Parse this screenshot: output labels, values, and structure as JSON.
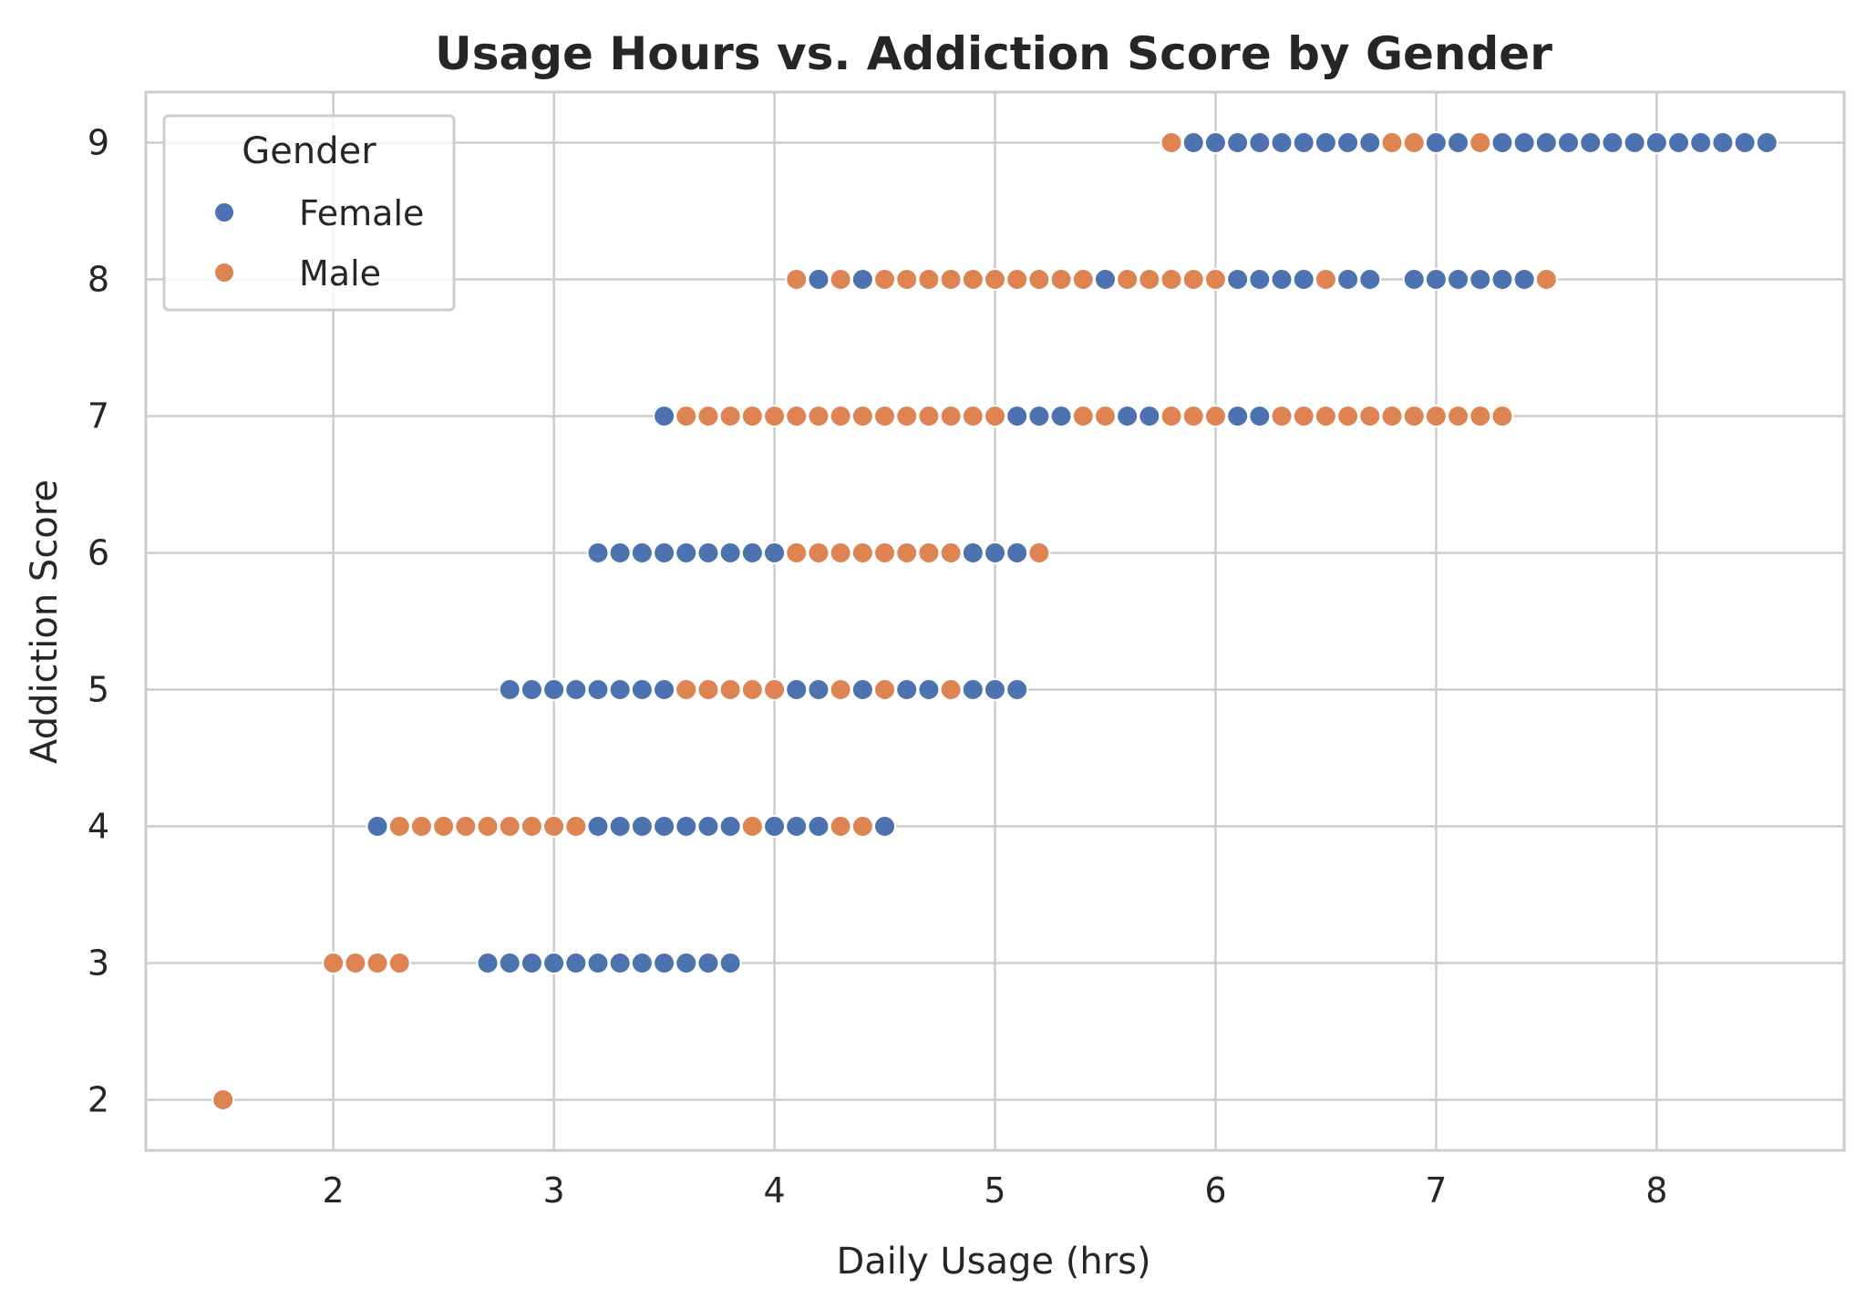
{
  "chart_data": {
    "type": "scatter",
    "title": "Usage Hours vs. Addiction Score by Gender",
    "xlabel": "Daily Usage (hrs)",
    "ylabel": "Addiction Score",
    "xlim": [
      1.15,
      8.85
    ],
    "ylim": [
      1.63,
      9.37
    ],
    "xticks": [
      "2",
      "3",
      "4",
      "5",
      "6",
      "7",
      "8"
    ],
    "yticks": [
      "2",
      "3",
      "4",
      "5",
      "6",
      "7",
      "8",
      "9"
    ],
    "grid": true,
    "legend": {
      "title": "Gender",
      "placement": "top-left"
    },
    "colors": {
      "Female": "#4c72b0",
      "Male": "#dd8452"
    },
    "series": [
      {
        "name": "Female",
        "points": [
          [
            2.7,
            3
          ],
          [
            2.8,
            3
          ],
          [
            2.9,
            3
          ],
          [
            3.0,
            3
          ],
          [
            3.1,
            3
          ],
          [
            3.2,
            3
          ],
          [
            3.3,
            3
          ],
          [
            3.4,
            3
          ],
          [
            3.5,
            3
          ],
          [
            3.6,
            3
          ],
          [
            3.7,
            3
          ],
          [
            3.8,
            3
          ],
          [
            2.2,
            4
          ],
          [
            3.2,
            4
          ],
          [
            3.3,
            4
          ],
          [
            3.4,
            4
          ],
          [
            3.5,
            4
          ],
          [
            3.6,
            4
          ],
          [
            3.7,
            4
          ],
          [
            3.8,
            4
          ],
          [
            4.0,
            4
          ],
          [
            4.1,
            4
          ],
          [
            4.2,
            4
          ],
          [
            4.5,
            4
          ],
          [
            2.8,
            5
          ],
          [
            2.9,
            5
          ],
          [
            3.0,
            5
          ],
          [
            3.1,
            5
          ],
          [
            3.2,
            5
          ],
          [
            3.3,
            5
          ],
          [
            3.4,
            5
          ],
          [
            3.5,
            5
          ],
          [
            4.1,
            5
          ],
          [
            4.2,
            5
          ],
          [
            4.4,
            5
          ],
          [
            4.6,
            5
          ],
          [
            4.7,
            5
          ],
          [
            4.9,
            5
          ],
          [
            5.0,
            5
          ],
          [
            5.1,
            5
          ],
          [
            3.2,
            6
          ],
          [
            3.3,
            6
          ],
          [
            3.4,
            6
          ],
          [
            3.5,
            6
          ],
          [
            3.6,
            6
          ],
          [
            3.7,
            6
          ],
          [
            3.8,
            6
          ],
          [
            3.9,
            6
          ],
          [
            4.0,
            6
          ],
          [
            4.9,
            6
          ],
          [
            5.0,
            6
          ],
          [
            5.1,
            6
          ],
          [
            3.5,
            7
          ],
          [
            5.1,
            7
          ],
          [
            5.2,
            7
          ],
          [
            5.3,
            7
          ],
          [
            5.6,
            7
          ],
          [
            5.7,
            7
          ],
          [
            6.1,
            7
          ],
          [
            6.2,
            7
          ],
          [
            4.2,
            8
          ],
          [
            4.4,
            8
          ],
          [
            5.5,
            8
          ],
          [
            6.1,
            8
          ],
          [
            6.2,
            8
          ],
          [
            6.3,
            8
          ],
          [
            6.4,
            8
          ],
          [
            6.6,
            8
          ],
          [
            6.7,
            8
          ],
          [
            6.9,
            8
          ],
          [
            7.0,
            8
          ],
          [
            7.1,
            8
          ],
          [
            7.2,
            8
          ],
          [
            7.3,
            8
          ],
          [
            7.4,
            8
          ],
          [
            5.9,
            9
          ],
          [
            6.0,
            9
          ],
          [
            6.1,
            9
          ],
          [
            6.2,
            9
          ],
          [
            6.3,
            9
          ],
          [
            6.4,
            9
          ],
          [
            6.5,
            9
          ],
          [
            6.6,
            9
          ],
          [
            6.7,
            9
          ],
          [
            7.0,
            9
          ],
          [
            7.1,
            9
          ],
          [
            7.3,
            9
          ],
          [
            7.4,
            9
          ],
          [
            7.5,
            9
          ],
          [
            7.6,
            9
          ],
          [
            7.7,
            9
          ],
          [
            7.8,
            9
          ],
          [
            7.9,
            9
          ],
          [
            8.0,
            9
          ],
          [
            8.1,
            9
          ],
          [
            8.2,
            9
          ],
          [
            8.3,
            9
          ],
          [
            8.4,
            9
          ],
          [
            8.5,
            9
          ]
        ]
      },
      {
        "name": "Male",
        "points": [
          [
            1.5,
            2
          ],
          [
            2.0,
            3
          ],
          [
            2.1,
            3
          ],
          [
            2.2,
            3
          ],
          [
            2.3,
            3
          ],
          [
            2.3,
            4
          ],
          [
            2.4,
            4
          ],
          [
            2.5,
            4
          ],
          [
            2.6,
            4
          ],
          [
            2.7,
            4
          ],
          [
            2.8,
            4
          ],
          [
            2.9,
            4
          ],
          [
            3.0,
            4
          ],
          [
            3.1,
            4
          ],
          [
            3.9,
            4
          ],
          [
            4.3,
            4
          ],
          [
            4.4,
            4
          ],
          [
            3.6,
            5
          ],
          [
            3.7,
            5
          ],
          [
            3.8,
            5
          ],
          [
            3.9,
            5
          ],
          [
            4.0,
            5
          ],
          [
            4.3,
            5
          ],
          [
            4.5,
            5
          ],
          [
            4.8,
            5
          ],
          [
            4.1,
            6
          ],
          [
            4.2,
            6
          ],
          [
            4.3,
            6
          ],
          [
            4.4,
            6
          ],
          [
            4.5,
            6
          ],
          [
            4.6,
            6
          ],
          [
            4.7,
            6
          ],
          [
            4.8,
            6
          ],
          [
            5.2,
            6
          ],
          [
            3.6,
            7
          ],
          [
            3.7,
            7
          ],
          [
            3.8,
            7
          ],
          [
            3.9,
            7
          ],
          [
            4.0,
            7
          ],
          [
            4.1,
            7
          ],
          [
            4.2,
            7
          ],
          [
            4.3,
            7
          ],
          [
            4.4,
            7
          ],
          [
            4.5,
            7
          ],
          [
            4.6,
            7
          ],
          [
            4.7,
            7
          ],
          [
            4.8,
            7
          ],
          [
            4.9,
            7
          ],
          [
            5.0,
            7
          ],
          [
            5.4,
            7
          ],
          [
            5.5,
            7
          ],
          [
            5.8,
            7
          ],
          [
            5.9,
            7
          ],
          [
            6.0,
            7
          ],
          [
            6.3,
            7
          ],
          [
            6.4,
            7
          ],
          [
            6.5,
            7
          ],
          [
            6.6,
            7
          ],
          [
            6.7,
            7
          ],
          [
            6.8,
            7
          ],
          [
            6.9,
            7
          ],
          [
            7.0,
            7
          ],
          [
            7.1,
            7
          ],
          [
            7.2,
            7
          ],
          [
            7.3,
            7
          ],
          [
            4.1,
            8
          ],
          [
            4.3,
            8
          ],
          [
            4.5,
            8
          ],
          [
            4.6,
            8
          ],
          [
            4.7,
            8
          ],
          [
            4.8,
            8
          ],
          [
            4.9,
            8
          ],
          [
            5.0,
            8
          ],
          [
            5.1,
            8
          ],
          [
            5.2,
            8
          ],
          [
            5.3,
            8
          ],
          [
            5.4,
            8
          ],
          [
            5.6,
            8
          ],
          [
            5.7,
            8
          ],
          [
            5.8,
            8
          ],
          [
            5.9,
            8
          ],
          [
            6.0,
            8
          ],
          [
            6.5,
            8
          ],
          [
            7.5,
            8
          ],
          [
            5.8,
            9
          ],
          [
            6.8,
            9
          ],
          [
            6.9,
            9
          ],
          [
            7.2,
            9
          ]
        ]
      }
    ]
  }
}
